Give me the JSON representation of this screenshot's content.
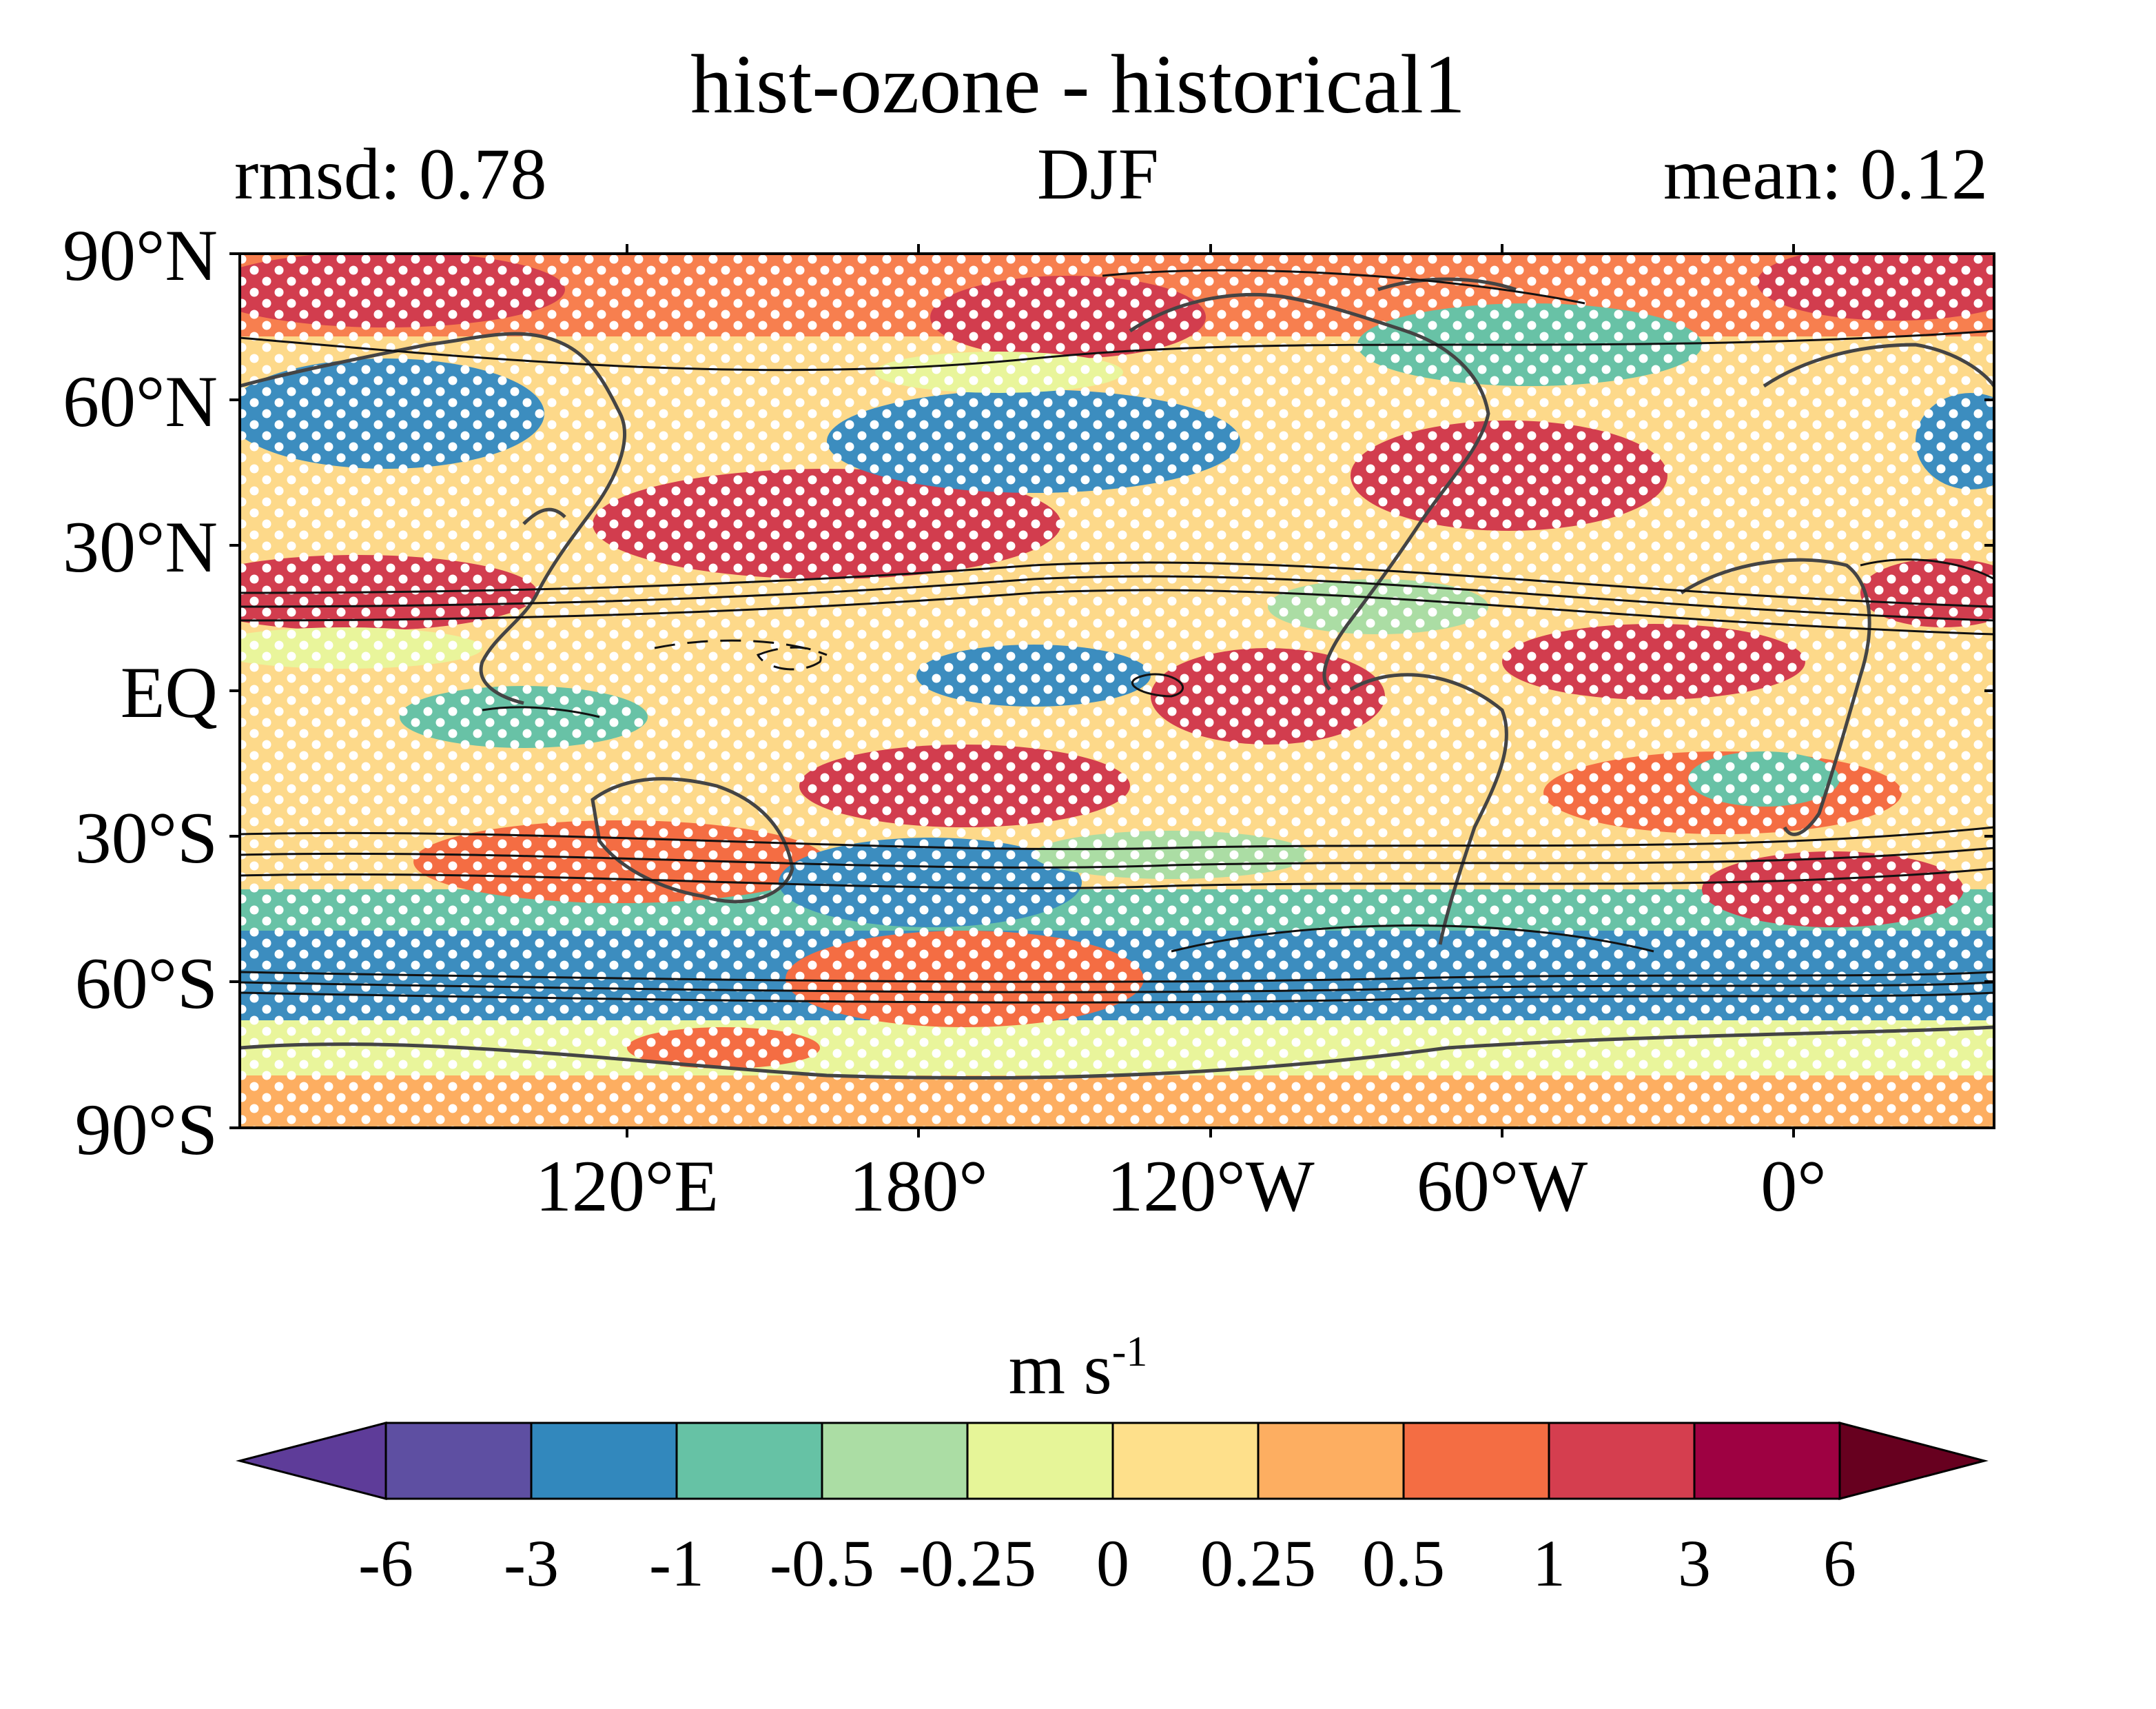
{
  "title": "hist-ozone - historical1",
  "stats": {
    "rmsd": "rmsd: 0.78",
    "season": "DJF",
    "mean": "mean: 0.12"
  },
  "map": {
    "projection": "PlateCarree, centered ~30°W",
    "lat_ticks": [
      "90°N",
      "60°N",
      "30°N",
      "EQ",
      "30°S",
      "60°S",
      "90°S"
    ],
    "lon_ticks": [
      "120°E",
      "180°",
      "120°W",
      "60°W",
      "0°"
    ],
    "stippling": "white dots",
    "contours": "black climatology contours; dashed negative"
  },
  "colorbar": {
    "units_base": "m s",
    "units_exp": "-1",
    "ticks": [
      "-6",
      "-3",
      "-1",
      "-0.5",
      "-0.25",
      "0",
      "0.25",
      "0.5",
      "1",
      "3",
      "6"
    ],
    "colors": [
      "#5e3c99",
      "#5e4fa2",
      "#3288bd",
      "#66c2a5",
      "#abdda4",
      "#e6f598",
      "#fee08b",
      "#fdae61",
      "#f46d43",
      "#d53e4f",
      "#9e0142",
      "#67001f"
    ],
    "extend": "both"
  }
}
